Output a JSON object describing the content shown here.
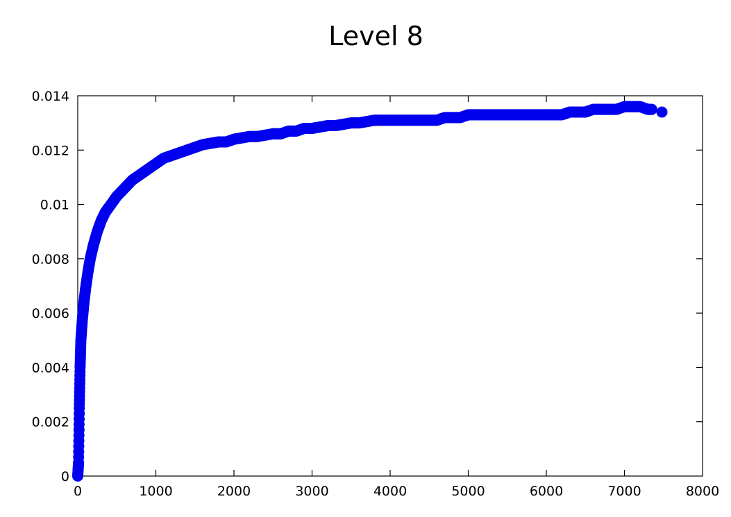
{
  "chart_data": {
    "type": "scatter",
    "title": "Level 8",
    "xlabel": "",
    "ylabel": "",
    "xlim": [
      0,
      8000
    ],
    "ylim": [
      0,
      0.014
    ],
    "x_ticks": [
      "0",
      "1000",
      "2000",
      "3000",
      "4000",
      "5000",
      "6000",
      "7000",
      "8000"
    ],
    "y_ticks": [
      "0",
      "0.002",
      "0.004",
      "0.006",
      "0.008",
      "0.01",
      "0.012",
      "0.014"
    ],
    "grid": false,
    "marker_color": "#0000ee",
    "series": [
      {
        "x": [
          0,
          10,
          20,
          30,
          40,
          60,
          80,
          100,
          130,
          160,
          200,
          250,
          300,
          350,
          400,
          500,
          600,
          700,
          800,
          900,
          1000,
          1100,
          1200,
          1300,
          1400,
          1500,
          1600,
          1700,
          1800,
          1900,
          2000,
          2100,
          2200,
          2300,
          2400,
          2500,
          2600,
          2700,
          2800,
          2900,
          3000,
          3100,
          3200,
          3300,
          3400,
          3500,
          3600,
          3700,
          3800,
          3900,
          4000,
          4100,
          4200,
          4300,
          4400,
          4500,
          4600,
          4700,
          4800,
          4900,
          5000,
          5100,
          5200,
          5300,
          5400,
          5500,
          5600,
          5700,
          5800,
          5900,
          6000,
          6100,
          6200,
          6300,
          6400,
          6500,
          6600,
          6700,
          6800,
          6900,
          7000,
          7100,
          7200,
          7300,
          7350,
          7480
        ],
        "y": [
          0,
          0.0005,
          0.0025,
          0.004,
          0.005,
          0.0058,
          0.0064,
          0.0069,
          0.0075,
          0.008,
          0.0085,
          0.009,
          0.0094,
          0.0097,
          0.0099,
          0.0103,
          0.0106,
          0.0109,
          0.0111,
          0.0113,
          0.0115,
          0.0117,
          0.0118,
          0.0119,
          0.012,
          0.0121,
          0.0122,
          0.01225,
          0.0123,
          0.0123,
          0.0124,
          0.01245,
          0.0125,
          0.0125,
          0.01255,
          0.0126,
          0.0126,
          0.0127,
          0.0127,
          0.0128,
          0.0128,
          0.01285,
          0.0129,
          0.0129,
          0.01295,
          0.013,
          0.013,
          0.01305,
          0.0131,
          0.0131,
          0.0131,
          0.0131,
          0.0131,
          0.0131,
          0.0131,
          0.0131,
          0.0131,
          0.0132,
          0.0132,
          0.0132,
          0.0133,
          0.0133,
          0.0133,
          0.0133,
          0.0133,
          0.0133,
          0.0133,
          0.0133,
          0.0133,
          0.0133,
          0.0133,
          0.0133,
          0.0133,
          0.0134,
          0.0134,
          0.0134,
          0.0135,
          0.0135,
          0.0135,
          0.0135,
          0.0136,
          0.0136,
          0.0136,
          0.0135,
          0.0135,
          0.0134
        ]
      }
    ]
  }
}
